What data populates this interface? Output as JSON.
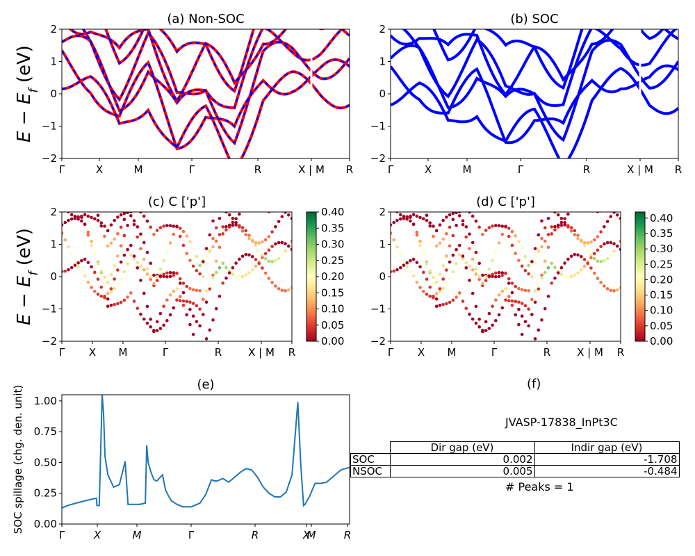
{
  "chart_data": [
    {
      "id": "a",
      "type": "line",
      "title": "(a) Non-SOC",
      "ylabel": "E - E_f (eV)",
      "ylim": [
        -2,
        2
      ],
      "yticks": [
        "2",
        "1",
        "0",
        "−1",
        "−2"
      ],
      "xticks": [
        "Γ",
        "X",
        "M",
        "Γ",
        "R",
        "X | M",
        "R"
      ],
      "series": [
        {
          "color": "#ff0000",
          "style": "solid",
          "note": "bands",
          "x": [
            0,
            10,
            20,
            30,
            40,
            50,
            60,
            70,
            80,
            90,
            100
          ],
          "y": [
            1.8,
            1.3,
            0.0,
            1.2,
            -0.6,
            0.3,
            -0.8,
            1.2,
            1.3,
            1.2,
            1.3
          ]
        },
        {
          "color": "#0000ff",
          "style": "dashed",
          "note": "bands",
          "x": [
            0,
            10,
            20,
            30,
            40,
            50,
            60,
            70,
            80,
            90,
            100
          ],
          "y": [
            1.8,
            1.3,
            0.0,
            1.2,
            -0.6,
            0.3,
            -0.8,
            1.2,
            1.3,
            1.2,
            1.3
          ]
        }
      ]
    },
    {
      "id": "b",
      "type": "line",
      "title": "(b) SOC",
      "ylim": [
        -2,
        2
      ],
      "yticks": [
        "2",
        "1",
        "0",
        "−1",
        "−2"
      ],
      "xticks": [
        "Γ",
        "X",
        "M",
        "Γ",
        "R",
        "X | M",
        "R"
      ],
      "series": [
        {
          "color": "#0000ff",
          "x": [
            0,
            10,
            20,
            30,
            40,
            50,
            60,
            70,
            80,
            90,
            100
          ],
          "y": [
            1.3,
            1.1,
            0.1,
            1.0,
            -0.4,
            0.2,
            -0.7,
            1.2,
            1.4,
            0.9,
            1.2
          ]
        }
      ]
    },
    {
      "id": "c",
      "type": "scatter",
      "title": "(c)  C ['p']",
      "ylabel": "E - E_f (eV)",
      "ylim": [
        -2,
        2
      ],
      "yticks": [
        "2",
        "1",
        "0",
        "−1",
        "−2"
      ],
      "xticks": [
        "Γ",
        "X",
        "M",
        "Γ",
        "R",
        "X | M",
        "R"
      ],
      "colorbar": {
        "min": 0.0,
        "max": 0.4,
        "ticks": [
          "0.40",
          "0.35",
          "0.30",
          "0.25",
          "0.20",
          "0.15",
          "0.10",
          "0.05",
          "0.00"
        ]
      }
    },
    {
      "id": "d",
      "type": "scatter",
      "title": "(d) C ['p']",
      "ylim": [
        -2,
        2
      ],
      "yticks": [
        "2",
        "1",
        "0",
        "−1",
        "−2"
      ],
      "xticks": [
        "Γ",
        "X",
        "M",
        "Γ",
        "R",
        "X | M",
        "R"
      ],
      "colorbar": {
        "min": 0.0,
        "max": 0.42,
        "ticks": [
          "0.40",
          "0.35",
          "0.30",
          "0.25",
          "0.20",
          "0.15",
          "0.10",
          "0.05",
          "0.00"
        ]
      }
    },
    {
      "id": "e",
      "type": "line",
      "title": "(e)",
      "ylabel": "SOC spillage (chg. den. unit)",
      "ylim": [
        0,
        1.05
      ],
      "yticks": [
        "1.00",
        "0.75",
        "0.50",
        "0.25",
        "0.00"
      ],
      "xticks": [
        "Γ",
        "X",
        "M",
        "Γ",
        "R",
        "X",
        "M",
        "R"
      ],
      "series": [
        {
          "color": "#1f77b4",
          "x": [
            0,
            2,
            5,
            10,
            12,
            12.2,
            13,
            14,
            14.5,
            15,
            16,
            18,
            20,
            22,
            23,
            23.2,
            25,
            27,
            29,
            29.5,
            30,
            31,
            32,
            33,
            35,
            36,
            37,
            38,
            40,
            42,
            45,
            48,
            50,
            52,
            53,
            54,
            56,
            58,
            60,
            62,
            64,
            66,
            68,
            70,
            72,
            74,
            76,
            78,
            80,
            82,
            83,
            84,
            84.5,
            86,
            88,
            90,
            92,
            95,
            97,
            100
          ],
          "y": [
            0.13,
            0.15,
            0.17,
            0.2,
            0.21,
            0.15,
            0.15,
            1.05,
            0.9,
            0.55,
            0.4,
            0.3,
            0.32,
            0.51,
            0.16,
            0.16,
            0.16,
            0.16,
            0.17,
            0.64,
            0.5,
            0.42,
            0.36,
            0.35,
            0.4,
            0.28,
            0.23,
            0.19,
            0.16,
            0.14,
            0.14,
            0.17,
            0.24,
            0.36,
            0.35,
            0.35,
            0.37,
            0.34,
            0.38,
            0.42,
            0.45,
            0.44,
            0.38,
            0.3,
            0.25,
            0.22,
            0.22,
            0.26,
            0.4,
            0.99,
            0.5,
            0.15,
            0.16,
            0.22,
            0.33,
            0.33,
            0.34,
            0.4,
            0.44,
            0.46
          ]
        }
      ]
    }
  ],
  "panel_f": {
    "title": "(f)",
    "material": "JVASP-17838_InPt3C",
    "table": {
      "headers": [
        "Dir gap (eV)",
        "Indir gap (eV)"
      ],
      "rows": [
        {
          "label": "SOC",
          "dir": "0.002",
          "indir": "-1.708"
        },
        {
          "label": "NSOC",
          "dir": "0.005",
          "indir": "-0.484"
        }
      ]
    },
    "peaks": "# Peaks = 1"
  }
}
